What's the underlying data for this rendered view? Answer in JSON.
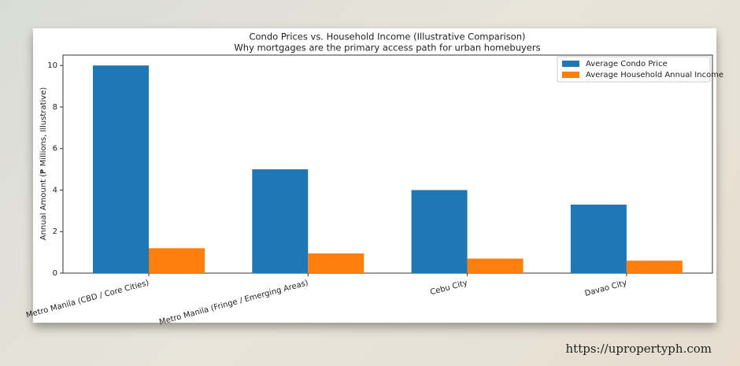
{
  "chart_data": {
    "type": "bar",
    "title": "Condo Prices vs. Household Income (Illustrative Comparison)",
    "subtitle": "Why mortgages are the primary access path for urban homebuyers",
    "y_label": "Annual Amount (₱ Millions, Illustrative)",
    "categories": [
      "Metro Manila (CBD / Core Cities)",
      "Metro Manila (Fringe / Emerging Areas)",
      "Cebu City",
      "Davao City"
    ],
    "series": [
      {
        "name": "Average Condo Price",
        "color": "#1f77b4",
        "values": [
          10,
          5,
          4,
          3.3
        ]
      },
      {
        "name": "Average Household Annual Income",
        "color": "#ff7f0e",
        "values": [
          1.2,
          0.95,
          0.7,
          0.6
        ]
      }
    ],
    "ylim": [
      0,
      10.5
    ],
    "yticks": [
      0,
      2,
      4,
      6,
      8,
      10
    ],
    "grid": false,
    "legend": "upper right"
  },
  "caption": "https://upropertyph.com"
}
